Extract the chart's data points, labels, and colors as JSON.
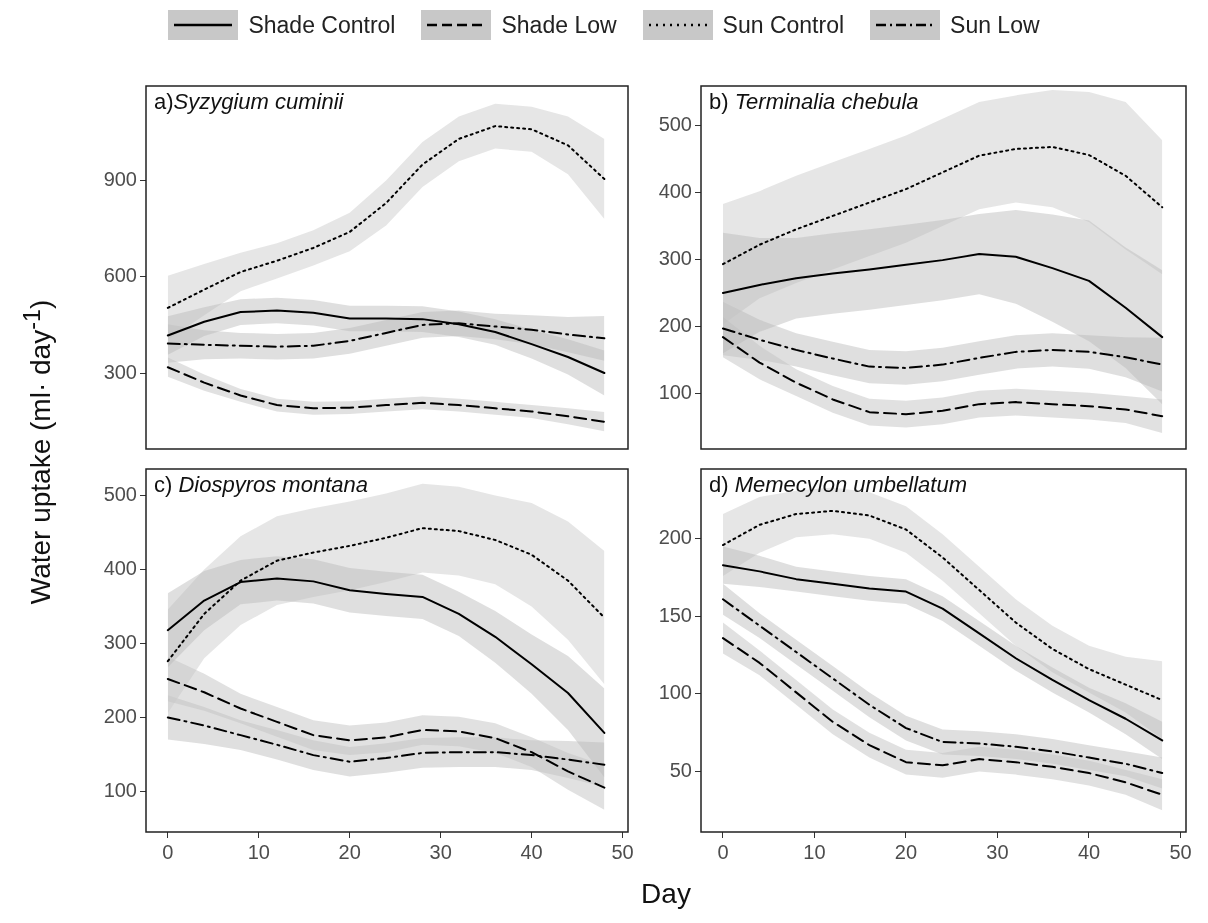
{
  "chart_data": [
    {
      "type": "line",
      "title": "a)Syzygium cuminii",
      "ylabel": "Water uptake (ml· day$^{-1}$)",
      "legend": "top",
      "grid": false,
      "tick_labels": "y",
      "x": [
        0,
        4,
        8,
        12,
        16,
        20,
        24,
        28,
        32,
        36,
        40,
        44,
        48
      ],
      "xlim": [
        -2.4,
        50.6
      ],
      "xticks": [
        0,
        10,
        20,
        30,
        40,
        50
      ],
      "ylim": [
        63,
        1195
      ],
      "yticks": [
        300,
        600,
        900
      ],
      "series": [
        {
          "name": "Shade Control",
          "color": "#000000",
          "line_style": "solid",
          "values": [
            417,
            460,
            490,
            495,
            488,
            470,
            470,
            468,
            452,
            428,
            390,
            350,
            300
          ],
          "lower": [
            357,
            415,
            450,
            455,
            448,
            430,
            430,
            428,
            412,
            388,
            345,
            295,
            230
          ],
          "upper": [
            477,
            505,
            530,
            535,
            528,
            510,
            510,
            508,
            492,
            468,
            435,
            405,
            370
          ]
        },
        {
          "name": "Shade Low",
          "color": "#000000",
          "line_style": "dashed",
          "values": [
            318,
            270,
            230,
            200,
            190,
            192,
            200,
            207,
            200,
            190,
            180,
            165,
            148
          ],
          "lower": [
            288,
            245,
            210,
            180,
            170,
            172,
            180,
            187,
            180,
            170,
            160,
            140,
            118
          ],
          "upper": [
            348,
            295,
            250,
            220,
            210,
            212,
            220,
            227,
            220,
            210,
            200,
            190,
            178
          ]
        },
        {
          "name": "Sun Control",
          "color": "#000000",
          "line_style": "dotted",
          "values": [
            503,
            560,
            615,
            650,
            690,
            740,
            830,
            950,
            1030,
            1070,
            1060,
            1010,
            905
          ],
          "lower": [
            403,
            480,
            555,
            595,
            635,
            680,
            760,
            880,
            960,
            1000,
            990,
            920,
            780
          ],
          "upper": [
            603,
            640,
            675,
            705,
            745,
            800,
            900,
            1020,
            1100,
            1140,
            1130,
            1100,
            1030
          ]
        },
        {
          "name": "Sun Low",
          "color": "#000000",
          "line_style": "dashdot",
          "values": [
            392,
            388,
            385,
            382,
            385,
            400,
            425,
            450,
            455,
            445,
            435,
            420,
            408
          ],
          "lower": [
            332,
            343,
            345,
            342,
            345,
            360,
            385,
            410,
            415,
            405,
            390,
            365,
            338
          ],
          "upper": [
            452,
            433,
            425,
            422,
            425,
            440,
            465,
            490,
            495,
            485,
            480,
            475,
            478
          ]
        }
      ]
    },
    {
      "type": "line",
      "title": "b) Terminalia chebula",
      "grid": false,
      "tick_labels": "y",
      "x": [
        0,
        4,
        8,
        12,
        16,
        20,
        24,
        28,
        32,
        36,
        40,
        44,
        48
      ],
      "xlim": [
        -2.4,
        50.6
      ],
      "xticks": [
        0,
        10,
        20,
        30,
        40,
        50
      ],
      "ylim": [
        17,
        559
      ],
      "yticks": [
        100,
        200,
        300,
        400,
        500
      ],
      "series": [
        {
          "color": "#000000",
          "line_style": "solid",
          "values": [
            250,
            262,
            272,
            279,
            285,
            292,
            299,
            308,
            304,
            287,
            268,
            228,
            184
          ],
          "lower": [
            160,
            192,
            212,
            219,
            225,
            232,
            239,
            248,
            234,
            207,
            178,
            138,
            84
          ],
          "upper": [
            340,
            332,
            332,
            339,
            345,
            352,
            359,
            368,
            374,
            367,
            358,
            318,
            284
          ]
        },
        {
          "color": "#000000",
          "line_style": "dashed",
          "values": [
            184,
            146,
            116,
            91,
            72,
            69,
            74,
            84,
            87,
            84,
            81,
            76,
            66
          ],
          "lower": [
            154,
            121,
            96,
            71,
            52,
            49,
            54,
            64,
            67,
            64,
            61,
            56,
            41
          ],
          "upper": [
            214,
            171,
            136,
            111,
            92,
            89,
            94,
            104,
            107,
            104,
            101,
            96,
            91
          ]
        },
        {
          "color": "#000000",
          "line_style": "dotted",
          "values": [
            293,
            322,
            345,
            365,
            385,
            405,
            430,
            455,
            465,
            468,
            456,
            425,
            378
          ],
          "lower": [
            203,
            242,
            265,
            285,
            305,
            325,
            350,
            375,
            385,
            378,
            356,
            315,
            278
          ],
          "upper": [
            383,
            402,
            425,
            445,
            465,
            485,
            510,
            535,
            545,
            553,
            550,
            535,
            478
          ]
        },
        {
          "color": "#000000",
          "line_style": "dashdot",
          "values": [
            197,
            180,
            165,
            152,
            140,
            138,
            143,
            153,
            162,
            165,
            162,
            154,
            143
          ],
          "lower": [
            157,
            150,
            140,
            127,
            115,
            113,
            118,
            128,
            137,
            140,
            137,
            124,
            103
          ],
          "upper": [
            237,
            210,
            190,
            177,
            165,
            163,
            168,
            178,
            187,
            190,
            187,
            184,
            183
          ]
        }
      ]
    },
    {
      "type": "line",
      "title": "c) Diospyros montana",
      "xlabel": "Day",
      "grid": false,
      "x": [
        0,
        4,
        8,
        12,
        16,
        20,
        24,
        28,
        32,
        36,
        40,
        44,
        48
      ],
      "xlim": [
        -2.4,
        50.6
      ],
      "xticks": [
        0,
        10,
        20,
        30,
        40,
        50
      ],
      "ylim": [
        45,
        536
      ],
      "yticks": [
        100,
        200,
        300,
        400,
        500
      ],
      "series": [
        {
          "color": "#000000",
          "line_style": "solid",
          "values": [
            318,
            358,
            383,
            388,
            384,
            372,
            367,
            363,
            340,
            309,
            272,
            233,
            179
          ],
          "lower": [
            268,
            318,
            353,
            358,
            354,
            342,
            337,
            333,
            310,
            274,
            232,
            183,
            119
          ],
          "upper": [
            368,
            398,
            413,
            418,
            414,
            402,
            397,
            393,
            370,
            344,
            312,
            283,
            239
          ]
        },
        {
          "color": "#000000",
          "line_style": "dashed",
          "values": [
            252,
            234,
            212,
            194,
            176,
            169,
            173,
            183,
            181,
            172,
            153,
            127,
            105
          ],
          "lower": [
            222,
            209,
            192,
            174,
            156,
            149,
            153,
            163,
            161,
            152,
            133,
            102,
            75
          ],
          "upper": [
            282,
            259,
            232,
            214,
            196,
            189,
            193,
            203,
            201,
            192,
            173,
            152,
            135
          ]
        },
        {
          "color": "#000000",
          "line_style": "dotted",
          "values": [
            276,
            340,
            385,
            412,
            423,
            432,
            443,
            456,
            452,
            440,
            420,
            385,
            335
          ],
          "lower": [
            206,
            280,
            325,
            352,
            363,
            372,
            383,
            396,
            392,
            380,
            350,
            305,
            245
          ],
          "upper": [
            346,
            400,
            445,
            472,
            483,
            492,
            503,
            516,
            512,
            500,
            490,
            465,
            425
          ]
        },
        {
          "color": "#000000",
          "line_style": "dashdot",
          "values": [
            200,
            189,
            176,
            163,
            149,
            140,
            145,
            152,
            153,
            153,
            149,
            143,
            136
          ],
          "lower": [
            170,
            164,
            156,
            143,
            129,
            120,
            125,
            132,
            133,
            133,
            129,
            118,
            106
          ],
          "upper": [
            230,
            214,
            196,
            183,
            169,
            160,
            165,
            172,
            173,
            173,
            169,
            168,
            166
          ]
        }
      ]
    },
    {
      "type": "line",
      "title": "d) Memecylon umbellatum",
      "grid": false,
      "x": [
        0,
        4,
        8,
        12,
        16,
        20,
        24,
        28,
        32,
        36,
        40,
        44,
        48
      ],
      "xlim": [
        -2.4,
        50.6
      ],
      "xticks": [
        0,
        10,
        20,
        30,
        40,
        50
      ],
      "ylim": [
        11,
        245
      ],
      "yticks": [
        50,
        100,
        150,
        200
      ],
      "series": [
        {
          "color": "#000000",
          "line_style": "solid",
          "values": [
            183,
            179,
            174,
            171,
            168,
            166,
            155,
            139,
            123,
            109,
            96,
            84,
            70
          ],
          "lower": [
            171,
            169,
            166,
            163,
            160,
            158,
            147,
            131,
            115,
            101,
            88,
            74,
            58
          ],
          "upper": [
            195,
            189,
            182,
            179,
            176,
            174,
            163,
            147,
            131,
            117,
            104,
            94,
            82
          ]
        },
        {
          "color": "#000000",
          "line_style": "dashed",
          "values": [
            136,
            120,
            101,
            82,
            67,
            56,
            54,
            58,
            56,
            53,
            49,
            43,
            35
          ],
          "lower": [
            126,
            112,
            93,
            74,
            59,
            48,
            46,
            50,
            48,
            45,
            41,
            35,
            25
          ],
          "upper": [
            146,
            128,
            109,
            90,
            75,
            64,
            62,
            66,
            64,
            61,
            57,
            51,
            45
          ]
        },
        {
          "color": "#000000",
          "line_style": "dotted",
          "values": [
            196,
            209,
            216,
            218,
            215,
            206,
            188,
            167,
            146,
            129,
            116,
            106,
            96
          ],
          "lower": [
            176,
            191,
            201,
            203,
            200,
            191,
            173,
            152,
            131,
            114,
            101,
            88,
            71
          ],
          "upper": [
            216,
            227,
            231,
            233,
            230,
            221,
            203,
            182,
            161,
            144,
            131,
            124,
            121
          ]
        },
        {
          "color": "#000000",
          "line_style": "dashdot",
          "values": [
            161,
            144,
            127,
            110,
            93,
            78,
            69,
            68,
            66,
            63,
            59,
            55,
            49
          ],
          "lower": [
            151,
            136,
            119,
            102,
            85,
            70,
            61,
            60,
            58,
            55,
            51,
            47,
            39
          ],
          "upper": [
            171,
            152,
            135,
            118,
            101,
            86,
            77,
            76,
            74,
            71,
            67,
            63,
            59
          ]
        }
      ]
    }
  ]
}
